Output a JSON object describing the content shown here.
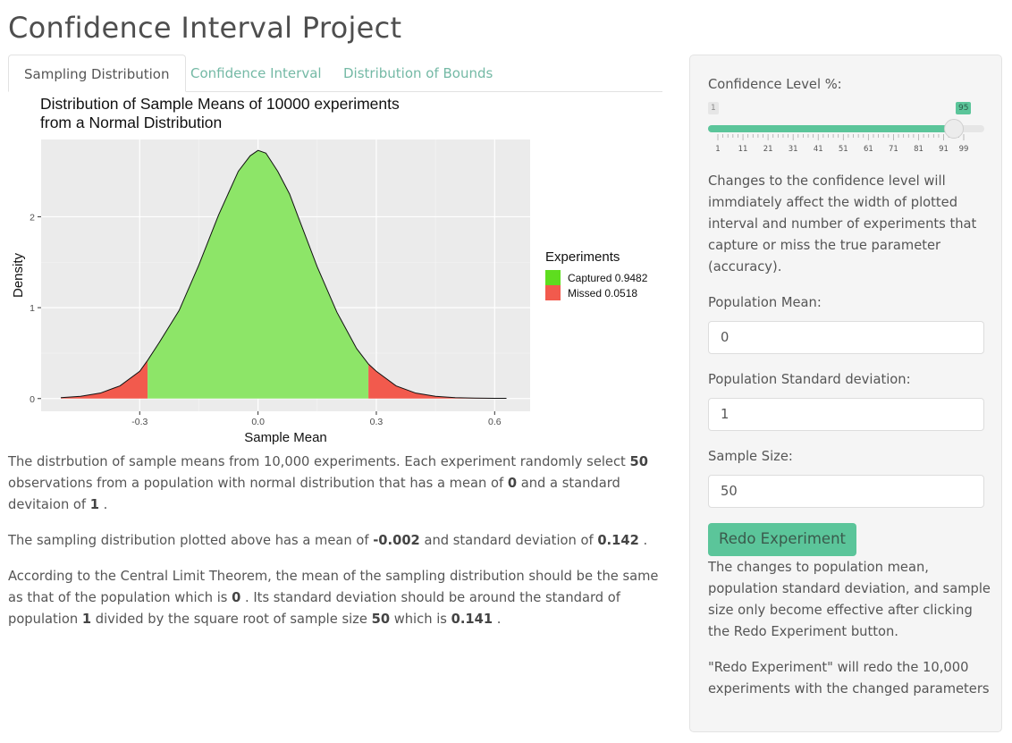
{
  "app": {
    "title": "Confidence Interval Project"
  },
  "tabs": [
    {
      "label": "Sampling Distribution",
      "active": true
    },
    {
      "label": "Confidence Interval",
      "active": false
    },
    {
      "label": "Distribution of Bounds",
      "active": false
    }
  ],
  "chart_data": {
    "type": "area",
    "title_line1": "Distribution of Sample Means of 10000 experiments",
    "title_line2": "from a Normal Distribution",
    "xlabel": "Sample Mean",
    "ylabel": "Density",
    "xlim": [
      -0.55,
      0.69
    ],
    "ylim": [
      -0.14,
      2.85
    ],
    "x_ticks": [
      -0.3,
      0.0,
      0.3,
      0.6
    ],
    "x_tick_labels": [
      "-0.3",
      "0.0",
      "0.3",
      "0.6"
    ],
    "y_ticks": [
      0,
      1,
      2
    ],
    "y_tick_labels": [
      "0",
      "1",
      "2"
    ],
    "grid": true,
    "lower_bound": -0.28,
    "upper_bound": 0.28,
    "density_curve": {
      "x": [
        -0.5,
        -0.45,
        -0.4,
        -0.35,
        -0.3,
        -0.28,
        -0.25,
        -0.2,
        -0.15,
        -0.1,
        -0.05,
        -0.02,
        0.0,
        0.02,
        0.05,
        0.08,
        0.1,
        0.15,
        0.2,
        0.25,
        0.28,
        0.3,
        0.35,
        0.4,
        0.45,
        0.5,
        0.55,
        0.6,
        0.63
      ],
      "y": [
        0.01,
        0.025,
        0.06,
        0.14,
        0.3,
        0.42,
        0.62,
        0.97,
        1.47,
        2.02,
        2.5,
        2.67,
        2.73,
        2.7,
        2.5,
        2.25,
        2.02,
        1.45,
        0.95,
        0.55,
        0.38,
        0.3,
        0.14,
        0.06,
        0.025,
        0.01,
        0.005,
        0.003,
        0.003
      ]
    },
    "legend": {
      "title": "Experiments",
      "position": "right",
      "items": [
        {
          "label": "Captured 0.9482",
          "color": "#5edd1f"
        },
        {
          "label": "Missed 0.0518",
          "color": "#f25a4d"
        }
      ]
    },
    "colors": {
      "captured_fill": "#8de568",
      "missed_fill": "#f25a4d",
      "panel_bg": "#ebebeb"
    }
  },
  "description": {
    "p1": {
      "a": "The distrbution of sample means from 10,000 experiments. Each experiment randomly select",
      "n": "50",
      "b": "observations from a population with normal distribution that has a mean of",
      "mean": "0",
      "c": "and a standard devitaion of",
      "sd": "1",
      "d": "."
    },
    "p2": {
      "a": "The sampling distribution plotted above has a mean of",
      "mean": "-0.002",
      "b": "and standard deviation of",
      "sd": "0.142",
      "c": "."
    },
    "p3": {
      "a": "According to the Central Limit Theorem, the mean of the sampling distribution should be the same as that of the population which is",
      "mean": "0",
      "b": ". Its standard deviation should be around the standard of population",
      "sd": "1",
      "c": "divided by the square root of sample size",
      "n": "50",
      "d": "which is",
      "se": "0.141",
      "e": "."
    }
  },
  "sidebar": {
    "confidence_label": "Confidence Level %:",
    "slider": {
      "min": 1,
      "max": 99,
      "value": 95,
      "min_label": "1",
      "value_label": "95",
      "tick_labels": [
        "1",
        "11",
        "21",
        "31",
        "41",
        "51",
        "61",
        "71",
        "81",
        "91",
        "99"
      ]
    },
    "confidence_note": "Changes to the confidence level will immdiately affect the width of plotted interval and number of experiments that capture or miss the true parameter (accuracy).",
    "pop_mean_label": "Population Mean:",
    "pop_mean_value": "0",
    "pop_sd_label": "Population Standard deviation:",
    "pop_sd_value": "1",
    "sample_size_label": "Sample Size:",
    "sample_size_value": "50",
    "redo_button": "Redo Experiment",
    "redo_note": "The changes to population mean, population standard deviation, and sample size only become effective after clicking the Redo Experiment button.",
    "redo_note2": "\"Redo Experiment\" will redo the 10,000 experiments with the changed parameters"
  }
}
